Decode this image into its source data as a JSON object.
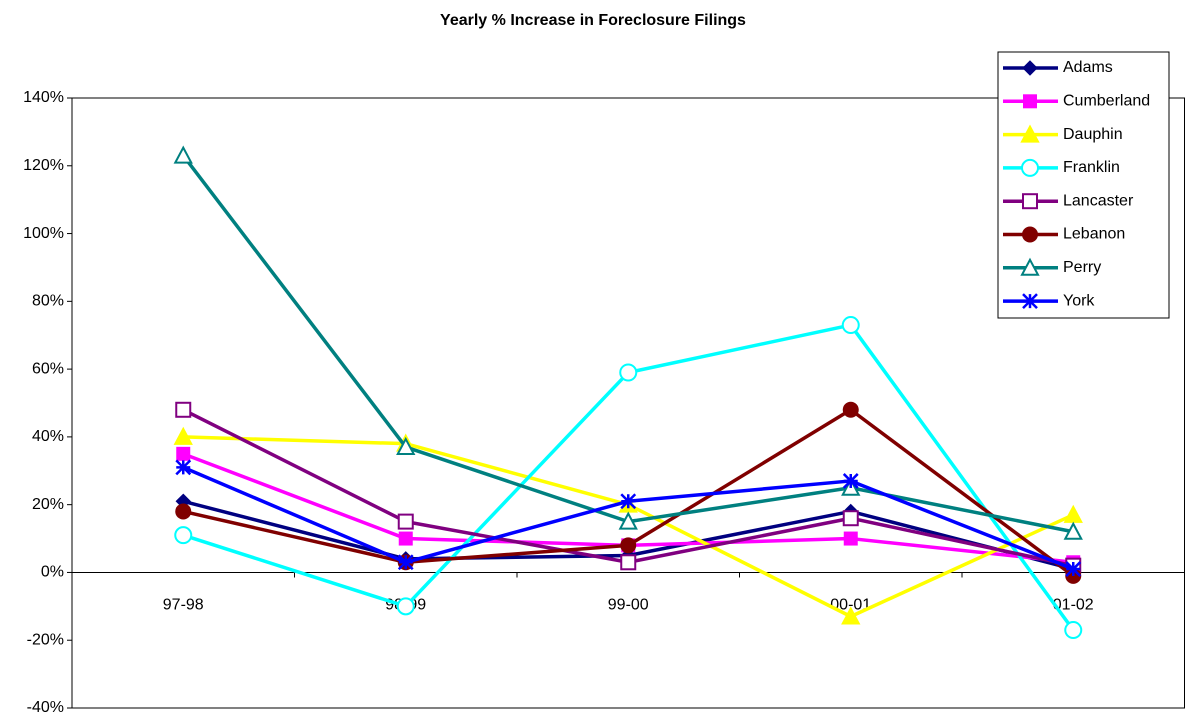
{
  "chart_data": {
    "type": "line",
    "title": "Yearly % Increase in Foreclosure Filings",
    "categories": [
      "97-98",
      "98-99",
      "99-00",
      "00-01",
      "01-02"
    ],
    "ylim": [
      -40,
      140
    ],
    "yticks": [
      {
        "value": -40,
        "label": "-40%"
      },
      {
        "value": -20,
        "label": "-20%"
      },
      {
        "value": 0,
        "label": "0%"
      },
      {
        "value": 20,
        "label": "20%"
      },
      {
        "value": 40,
        "label": "40%"
      },
      {
        "value": 60,
        "label": "60%"
      },
      {
        "value": 80,
        "label": "80%"
      },
      {
        "value": 100,
        "label": "100%"
      },
      {
        "value": 120,
        "label": "120%"
      },
      {
        "value": 140,
        "label": "140%"
      }
    ],
    "grid": false,
    "legend": "top-right",
    "series": [
      {
        "name": "Adams",
        "color": "#000080",
        "marker": "diamond",
        "values": [
          21,
          4,
          5,
          18,
          1
        ]
      },
      {
        "name": "Cumberland",
        "color": "#ff00ff",
        "marker": "square",
        "values": [
          35,
          10,
          8,
          10,
          3
        ]
      },
      {
        "name": "Dauphin",
        "color": "#ffff00",
        "marker": "triangle",
        "values": [
          40,
          38,
          20,
          -13,
          17
        ]
      },
      {
        "name": "Franklin",
        "color": "#00ffff",
        "marker": "circle-open",
        "values": [
          11,
          -10,
          59,
          73,
          -17
        ]
      },
      {
        "name": "Lancaster",
        "color": "#800080",
        "marker": "square-open",
        "values": [
          48,
          15,
          3,
          16,
          2
        ]
      },
      {
        "name": "Lebanon",
        "color": "#800000",
        "marker": "circle",
        "values": [
          18,
          3,
          8,
          48,
          -1
        ]
      },
      {
        "name": "Perry",
        "color": "#008080",
        "marker": "triangle-open",
        "values": [
          123,
          37,
          15,
          25,
          12
        ]
      },
      {
        "name": "York",
        "color": "#0000ff",
        "marker": "asterisk",
        "values": [
          31,
          3,
          21,
          27,
          1
        ]
      }
    ]
  }
}
